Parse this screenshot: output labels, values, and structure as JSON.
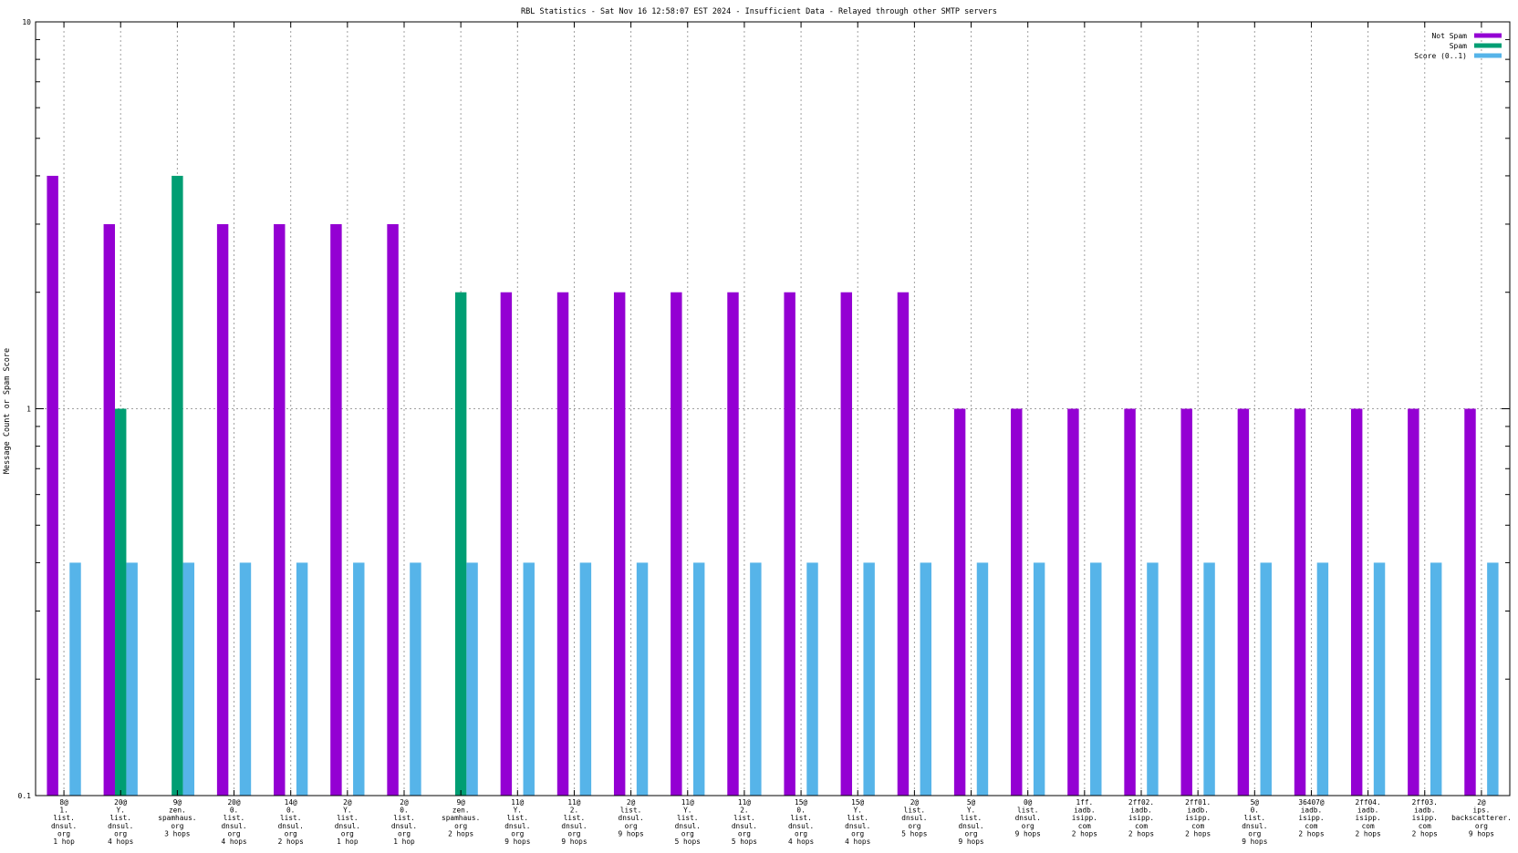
{
  "chart_data": {
    "type": "bar",
    "title": "RBL Statistics - Sat Nov 16 12:58:07 EST 2024 - Insufficient Data - Relayed through other SMTP servers",
    "ylabel": "Message Count or Spam Score",
    "xlabel": "",
    "yscale": "log",
    "ylim": [
      0.1,
      10
    ],
    "yticks": [
      "0.1",
      "1",
      "10"
    ],
    "grid": true,
    "legend_position": "top-right",
    "categories": [
      [
        "8@",
        "1.",
        "list.",
        "dnsul.",
        "org",
        "1 hop"
      ],
      [
        "20@",
        "Y.",
        "list.",
        "dnsul.",
        "org",
        "4 hops"
      ],
      [
        "9@",
        "zen.",
        "spamhaus.",
        "org",
        "3 hops"
      ],
      [
        "20@",
        "0.",
        "list.",
        "dnsul.",
        "org",
        "4 hops"
      ],
      [
        "14@",
        "0.",
        "list.",
        "dnsul.",
        "org",
        "2 hops"
      ],
      [
        "2@",
        "Y.",
        "list.",
        "dnsul.",
        "org",
        "1 hop"
      ],
      [
        "2@",
        "0.",
        "list.",
        "dnsul.",
        "org",
        "1 hop"
      ],
      [
        "9@",
        "zen.",
        "spamhaus.",
        "org",
        "2 hops"
      ],
      [
        "11@",
        "Y.",
        "list.",
        "dnsul.",
        "org",
        "9 hops"
      ],
      [
        "11@",
        "2.",
        "list.",
        "dnsul.",
        "org",
        "9 hops"
      ],
      [
        "2@",
        "list.",
        "dnsul.",
        "org",
        "9 hops"
      ],
      [
        "11@",
        "Y.",
        "list.",
        "dnsul.",
        "org",
        "5 hops"
      ],
      [
        "11@",
        "2.",
        "list.",
        "dnsul.",
        "org",
        "5 hops"
      ],
      [
        "15@",
        "0.",
        "list.",
        "dnsul.",
        "org",
        "4 hops"
      ],
      [
        "15@",
        "Y.",
        "list.",
        "dnsul.",
        "org",
        "4 hops"
      ],
      [
        "2@",
        "list.",
        "dnsul.",
        "org",
        "5 hops"
      ],
      [
        "5@",
        "Y.",
        "list.",
        "dnsul.",
        "org",
        "9 hops"
      ],
      [
        "0@",
        "list.",
        "dnsul.",
        "org",
        "9 hops"
      ],
      [
        "1ff.",
        "iadb.",
        "isipp.",
        "com",
        "2 hops"
      ],
      [
        "2ff02.",
        "iadb.",
        "isipp.",
        "com",
        "2 hops"
      ],
      [
        "2ff01.",
        "iadb.",
        "isipp.",
        "com",
        "2 hops"
      ],
      [
        "5@",
        "0.",
        "list.",
        "dnsul.",
        "org",
        "9 hops"
      ],
      [
        "36407@",
        "iadb.",
        "isipp.",
        "com",
        "2 hops"
      ],
      [
        "2ff04.",
        "iadb.",
        "isipp.",
        "com",
        "2 hops"
      ],
      [
        "2ff03.",
        "iadb.",
        "isipp.",
        "com",
        "2 hops"
      ],
      [
        "2@",
        "ips.",
        "backscatterer.",
        "org",
        "9 hops"
      ]
    ],
    "series": [
      {
        "name": "Not Spam",
        "color": "#9400d3",
        "values": [
          4,
          3,
          null,
          3,
          3,
          3,
          3,
          null,
          2,
          2,
          2,
          2,
          2,
          2,
          2,
          2,
          1,
          1,
          1,
          1,
          1,
          1,
          1,
          1,
          1,
          1
        ]
      },
      {
        "name": "Spam",
        "color": "#009e73",
        "values": [
          null,
          1,
          4,
          null,
          null,
          null,
          null,
          2,
          null,
          null,
          null,
          null,
          null,
          null,
          null,
          null,
          null,
          null,
          null,
          null,
          null,
          null,
          null,
          null,
          null,
          null
        ]
      },
      {
        "name": "Score (0..1)",
        "color": "#56b4e9",
        "values": [
          0.4,
          0.4,
          0.4,
          0.4,
          0.4,
          0.4,
          0.4,
          0.4,
          0.4,
          0.4,
          0.4,
          0.4,
          0.4,
          0.4,
          0.4,
          0.4,
          0.4,
          0.4,
          0.4,
          0.4,
          0.4,
          0.4,
          0.4,
          0.4,
          0.4,
          0.4
        ]
      }
    ]
  }
}
